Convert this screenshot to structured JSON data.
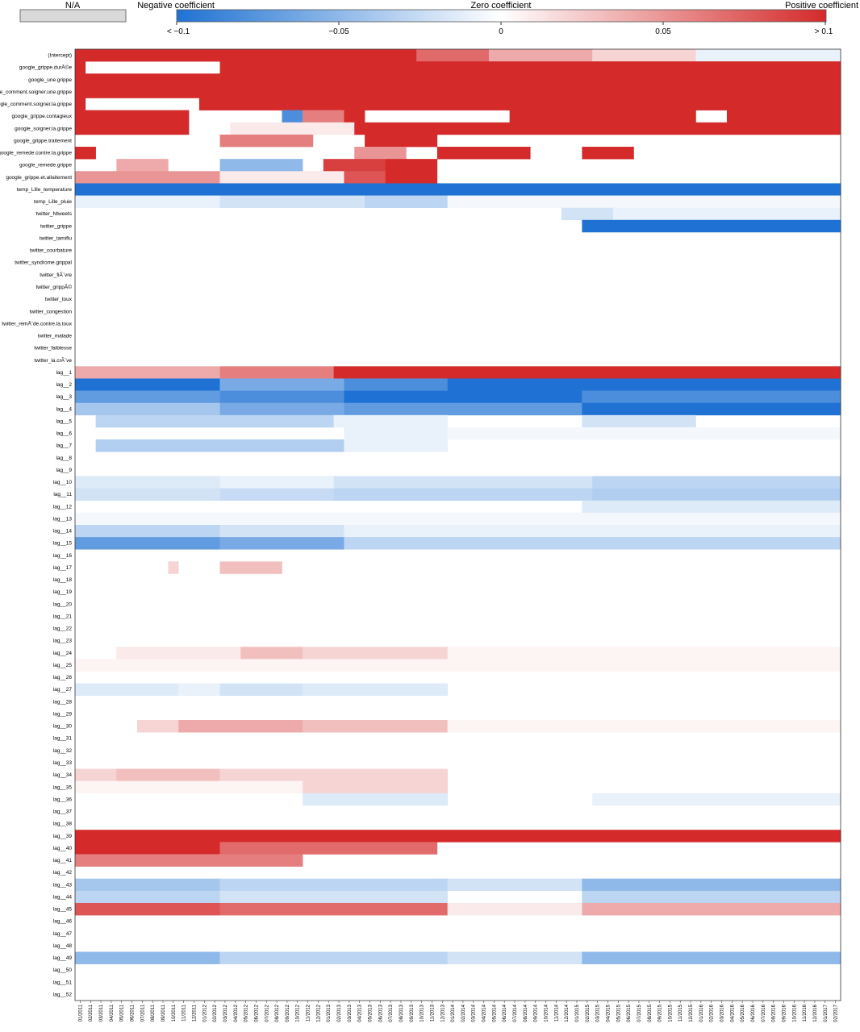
{
  "legend": {
    "na_label": "N/A",
    "na_color": "#d9d9d9",
    "negative_label": "Negative coefficient",
    "zero_label": "Zero coefficient",
    "positive_label": "Positive coefficient",
    "colors": {
      "negative": "#1f72d3",
      "zero": "#ffffff",
      "positive": "#d42a2a"
    },
    "ticks": [
      "< −0.1",
      "−0.05",
      "0",
      "0.05",
      "> 0.1"
    ]
  },
  "chart_data": {
    "type": "heatmap",
    "title": "",
    "xlabel": "",
    "ylabel": "",
    "value_range": [
      -0.1,
      0.1
    ],
    "legend_position": "top",
    "grid": false,
    "rows": [
      "(Intercept)",
      "google_grippe.durÃ©e",
      "google_une.grippe",
      "gle_comment.soigner.une.grippe",
      "oogle_comment.soigner.la.grippe",
      "google_grippe.contagieux",
      "google_soigner.la.grippe",
      "google_grippe.traitement",
      "google_remede.contre.la.grippe",
      "google_remede.grippe",
      "google_grippe.et.allaitement",
      "temp_Lille_temperature",
      "temp_Lille_pluie",
      "twitter_Ntweets",
      "twitter_grippe",
      "twitter_tamiflu",
      "twitter_courbature",
      "twitter_syndrome.grippal",
      "twitter_fiÃ¨vre",
      "twitter_grippÃ©",
      "twitter_toux",
      "twitter_congestion",
      "twitter_remÃ¨de.contre.la.toux",
      "twitter_malade",
      "twitter_faiblesse",
      "twitter_la.crÃ¨ve",
      "lag__1",
      "lag__2",
      "lag__3",
      "lag__4",
      "lag__5",
      "lag__6",
      "lag__7",
      "lag__8",
      "lag__9",
      "lag__10",
      "lag__11",
      "lag__12",
      "lag__13",
      "lag__14",
      "lag__15",
      "lag__16",
      "lag__17",
      "lag__18",
      "lag__19",
      "lag__20",
      "lag__21",
      "lag__22",
      "lag__23",
      "lag__24",
      "lag__25",
      "lag__26",
      "lag__27",
      "lag__28",
      "lag__29",
      "lag__30",
      "lag__31",
      "lag__32",
      "lag__33",
      "lag__34",
      "lag__35",
      "lag__36",
      "lag__37",
      "lag__38",
      "lag__39",
      "lag__40",
      "lag__41",
      "lag__42",
      "lag__43",
      "lag__44",
      "lag__45",
      "lag__46",
      "lag__47",
      "lag__48",
      "lag__49",
      "lag__50",
      "lag__51",
      "lag__52"
    ],
    "x": [
      "01/2011",
      "02/2011",
      "03/2011",
      "04/2011",
      "05/2011",
      "06/2011",
      "07/2011",
      "08/2011",
      "09/2011",
      "10/2011",
      "11/2011",
      "12/2011",
      "01/2012",
      "02/2012",
      "03/2012",
      "04/2012",
      "05/2012",
      "06/2012",
      "07/2012",
      "08/2012",
      "09/2012",
      "10/2012",
      "11/2012",
      "12/2012",
      "01/2013",
      "02/2013",
      "03/2013",
      "04/2013",
      "05/2013",
      "06/2013",
      "07/2013",
      "08/2013",
      "09/2013",
      "10/2013",
      "11/2013",
      "12/2013",
      "01/2014",
      "02/2014",
      "03/2014",
      "04/2014",
      "05/2014",
      "06/2014",
      "07/2014",
      "08/2014",
      "09/2014",
      "10/2014",
      "11/2014",
      "12/2014",
      "01/2015",
      "02/2015",
      "03/2015",
      "04/2015",
      "05/2015",
      "06/2015",
      "07/2015",
      "08/2015",
      "09/2015",
      "10/2015",
      "11/2015",
      "12/2015",
      "01/2016",
      "02/2016",
      "03/2016",
      "04/2016",
      "05/2016",
      "06/2016",
      "07/2016",
      "08/2016",
      "09/2016",
      "10/2016",
      "11/2016",
      "12/2016",
      "01/2017",
      "02/2017"
    ],
    "segments": [
      [
        [
          0,
          33,
          0.1
        ],
        [
          33,
          40,
          0.07
        ],
        [
          40,
          50,
          0.04
        ],
        [
          50,
          60,
          0.02
        ],
        [
          60,
          74,
          -0.01
        ]
      ],
      [
        [
          0,
          1,
          0.1
        ],
        [
          1,
          14,
          0
        ],
        [
          14,
          74,
          0.1
        ]
      ],
      [
        [
          0,
          74,
          0.1
        ]
      ],
      [
        [
          0,
          74,
          0.1
        ]
      ],
      [
        [
          0,
          1,
          0.1
        ],
        [
          1,
          12,
          0
        ],
        [
          12,
          74,
          0.1
        ]
      ],
      [
        [
          0,
          2,
          0.1
        ],
        [
          2,
          11,
          0.1
        ],
        [
          11,
          14,
          0
        ],
        [
          14,
          20,
          0
        ],
        [
          20,
          22,
          -0.08
        ],
        [
          22,
          26,
          0.06
        ],
        [
          26,
          28,
          0.1
        ],
        [
          28,
          42,
          0
        ],
        [
          42,
          60,
          0.1
        ],
        [
          60,
          63,
          0
        ],
        [
          63,
          74,
          0.1
        ]
      ],
      [
        [
          0,
          2,
          0.1
        ],
        [
          2,
          11,
          0.1
        ],
        [
          11,
          15,
          0
        ],
        [
          15,
          27,
          0.01
        ],
        [
          27,
          36,
          0.1
        ],
        [
          36,
          74,
          0.1
        ]
      ],
      [
        [
          0,
          14,
          0
        ],
        [
          14,
          23,
          0.06
        ],
        [
          23,
          28,
          0
        ],
        [
          28,
          35,
          0.1
        ],
        [
          35,
          38,
          0
        ],
        [
          38,
          74,
          0
        ]
      ],
      [
        [
          0,
          2,
          0.1
        ],
        [
          2,
          27,
          0
        ],
        [
          27,
          32,
          0.05
        ],
        [
          32,
          35,
          0
        ],
        [
          35,
          44,
          0.1
        ],
        [
          44,
          49,
          0
        ],
        [
          49,
          54,
          0.1
        ],
        [
          54,
          74,
          0
        ]
      ],
      [
        [
          0,
          4,
          0
        ],
        [
          4,
          9,
          0.04
        ],
        [
          9,
          14,
          0
        ],
        [
          14,
          22,
          -0.05
        ],
        [
          22,
          24,
          0
        ],
        [
          24,
          30,
          0.09
        ],
        [
          30,
          35,
          0.1
        ],
        [
          35,
          74,
          0
        ]
      ],
      [
        [
          0,
          4,
          0.05
        ],
        [
          4,
          14,
          0.05
        ],
        [
          14,
          26,
          0.01
        ],
        [
          26,
          30,
          0.08
        ],
        [
          30,
          35,
          0.1
        ],
        [
          35,
          74,
          0
        ]
      ],
      [
        [
          0,
          74,
          -0.1
        ]
      ],
      [
        [
          0,
          14,
          -0.01
        ],
        [
          14,
          20,
          -0.02
        ],
        [
          20,
          28,
          -0.02
        ],
        [
          28,
          36,
          -0.03
        ],
        [
          36,
          74,
          -0.005
        ]
      ],
      [
        [
          0,
          47,
          0
        ],
        [
          47,
          52,
          -0.02
        ],
        [
          52,
          74,
          -0.01
        ]
      ],
      [
        [
          0,
          49,
          0
        ],
        [
          49,
          74,
          -0.1
        ]
      ],
      [
        [
          0,
          74,
          0
        ]
      ],
      [
        [
          0,
          74,
          0
        ]
      ],
      [
        [
          0,
          74,
          0
        ]
      ],
      [
        [
          0,
          74,
          0
        ]
      ],
      [
        [
          0,
          74,
          0
        ]
      ],
      [
        [
          0,
          74,
          0
        ]
      ],
      [
        [
          0,
          74,
          0
        ]
      ],
      [
        [
          0,
          74,
          0
        ]
      ],
      [
        [
          0,
          74,
          0
        ]
      ],
      [
        [
          0,
          74,
          0
        ]
      ],
      [
        [
          0,
          74,
          0
        ]
      ],
      [
        [
          0,
          14,
          0.04
        ],
        [
          14,
          25,
          0.06
        ],
        [
          25,
          74,
          0.1
        ]
      ],
      [
        [
          0,
          14,
          -0.1
        ],
        [
          14,
          26,
          -0.06
        ],
        [
          26,
          36,
          -0.08
        ],
        [
          36,
          74,
          -0.1
        ]
      ],
      [
        [
          0,
          14,
          -0.07
        ],
        [
          14,
          26,
          -0.08
        ],
        [
          26,
          49,
          -0.1
        ],
        [
          49,
          74,
          -0.08
        ]
      ],
      [
        [
          0,
          14,
          -0.04
        ],
        [
          14,
          26,
          -0.06
        ],
        [
          26,
          49,
          -0.07
        ],
        [
          49,
          74,
          -0.1
        ]
      ],
      [
        [
          0,
          2,
          0
        ],
        [
          2,
          25,
          -0.03
        ],
        [
          25,
          36,
          -0.01
        ],
        [
          36,
          49,
          0
        ],
        [
          49,
          60,
          -0.02
        ],
        [
          60,
          74,
          0
        ]
      ],
      [
        [
          0,
          26,
          0
        ],
        [
          26,
          36,
          -0.01
        ],
        [
          36,
          74,
          -0.005
        ]
      ],
      [
        [
          0,
          2,
          0
        ],
        [
          2,
          26,
          -0.035
        ],
        [
          26,
          36,
          -0.01
        ],
        [
          36,
          74,
          0
        ]
      ],
      [
        [
          0,
          74,
          0
        ]
      ],
      [
        [
          0,
          74,
          0
        ]
      ],
      [
        [
          0,
          14,
          -0.015
        ],
        [
          14,
          25,
          -0.01
        ],
        [
          25,
          50,
          -0.02
        ],
        [
          50,
          74,
          -0.03
        ]
      ],
      [
        [
          0,
          14,
          -0.02
        ],
        [
          14,
          25,
          -0.025
        ],
        [
          25,
          50,
          -0.03
        ],
        [
          50,
          74,
          -0.035
        ]
      ],
      [
        [
          0,
          49,
          0
        ],
        [
          49,
          74,
          -0.015
        ]
      ],
      [
        [
          0,
          74,
          -0.005
        ]
      ],
      [
        [
          0,
          14,
          -0.03
        ],
        [
          14,
          26,
          -0.02
        ],
        [
          26,
          74,
          -0.01
        ]
      ],
      [
        [
          0,
          14,
          -0.07
        ],
        [
          14,
          26,
          -0.06
        ],
        [
          26,
          74,
          -0.03
        ]
      ],
      [
        [
          0,
          74,
          0
        ]
      ],
      [
        [
          0,
          9,
          0
        ],
        [
          9,
          10,
          0.02
        ],
        [
          10,
          14,
          0
        ],
        [
          14,
          20,
          0.03
        ],
        [
          20,
          74,
          0
        ]
      ],
      [
        [
          0,
          74,
          0
        ]
      ],
      [
        [
          0,
          74,
          0
        ]
      ],
      [
        [
          0,
          74,
          0
        ]
      ],
      [
        [
          0,
          74,
          0
        ]
      ],
      [
        [
          0,
          74,
          0
        ]
      ],
      [
        [
          0,
          74,
          0
        ]
      ],
      [
        [
          0,
          4,
          0
        ],
        [
          4,
          16,
          0.01
        ],
        [
          16,
          22,
          0.03
        ],
        [
          22,
          36,
          0.02
        ],
        [
          36,
          74,
          0.005
        ]
      ],
      [
        [
          0,
          74,
          0.005
        ]
      ],
      [
        [
          0,
          74,
          0
        ]
      ],
      [
        [
          0,
          10,
          -0.015
        ],
        [
          10,
          14,
          -0.01
        ],
        [
          14,
          22,
          -0.02
        ],
        [
          22,
          36,
          -0.015
        ],
        [
          36,
          74,
          0
        ]
      ],
      [
        [
          0,
          74,
          0
        ]
      ],
      [
        [
          0,
          74,
          0
        ]
      ],
      [
        [
          0,
          6,
          0
        ],
        [
          6,
          10,
          0.02
        ],
        [
          10,
          22,
          0.04
        ],
        [
          22,
          36,
          0.03
        ],
        [
          36,
          74,
          0.005
        ]
      ],
      [
        [
          0,
          74,
          0
        ]
      ],
      [
        [
          0,
          74,
          0
        ]
      ],
      [
        [
          0,
          74,
          0
        ]
      ],
      [
        [
          0,
          4,
          0.02
        ],
        [
          4,
          14,
          0.03
        ],
        [
          14,
          22,
          0.02
        ],
        [
          22,
          36,
          0.02
        ],
        [
          36,
          74,
          0
        ]
      ],
      [
        [
          0,
          22,
          0.005
        ],
        [
          22,
          36,
          0.02
        ],
        [
          36,
          74,
          0
        ]
      ],
      [
        [
          0,
          22,
          0
        ],
        [
          22,
          36,
          -0.015
        ],
        [
          36,
          50,
          0
        ],
        [
          50,
          74,
          -0.01
        ]
      ],
      [
        [
          0,
          74,
          0
        ]
      ],
      [
        [
          0,
          74,
          0
        ]
      ],
      [
        [
          0,
          74,
          0.1
        ]
      ],
      [
        [
          0,
          14,
          0.1
        ],
        [
          14,
          35,
          0.07
        ],
        [
          35,
          74,
          0
        ]
      ],
      [
        [
          0,
          22,
          0.06
        ],
        [
          22,
          74,
          0
        ]
      ],
      [
        [
          0,
          74,
          0
        ]
      ],
      [
        [
          0,
          14,
          -0.04
        ],
        [
          14,
          36,
          -0.03
        ],
        [
          36,
          49,
          -0.02
        ],
        [
          49,
          74,
          -0.05
        ]
      ],
      [
        [
          0,
          14,
          -0.03
        ],
        [
          14,
          36,
          -0.02
        ],
        [
          36,
          49,
          0
        ],
        [
          49,
          74,
          -0.03
        ]
      ],
      [
        [
          0,
          14,
          0.08
        ],
        [
          14,
          36,
          0.07
        ],
        [
          36,
          49,
          0.01
        ],
        [
          49,
          74,
          0.04
        ]
      ],
      [
        [
          0,
          74,
          0
        ]
      ],
      [
        [
          0,
          74,
          0
        ]
      ],
      [
        [
          0,
          74,
          0
        ]
      ],
      [
        [
          0,
          14,
          -0.05
        ],
        [
          14,
          36,
          -0.03
        ],
        [
          36,
          49,
          -0.02
        ],
        [
          49,
          74,
          -0.05
        ]
      ],
      [
        [
          0,
          74,
          0
        ]
      ]
    ]
  }
}
